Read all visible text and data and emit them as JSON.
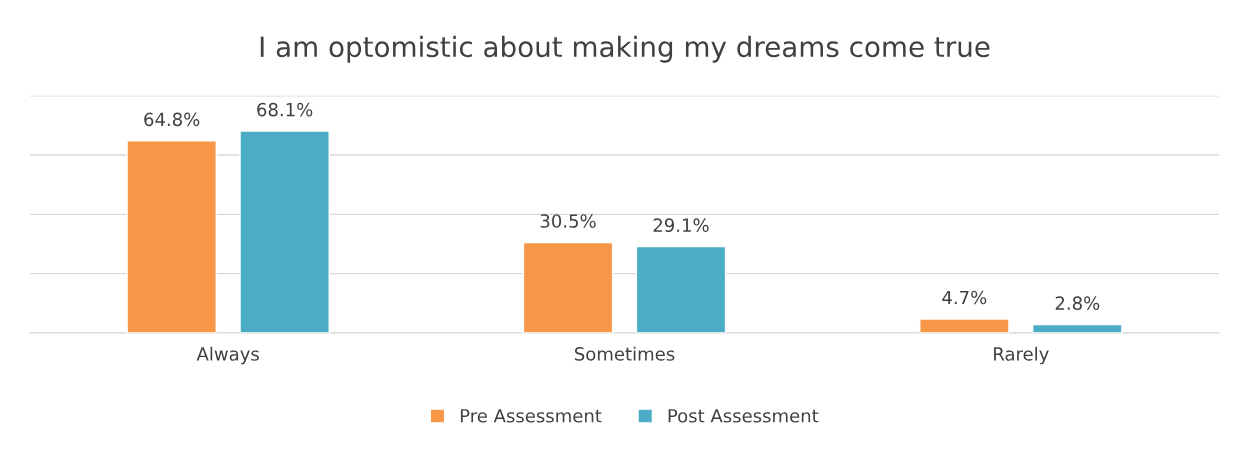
{
  "chart_data": {
    "type": "bar",
    "title": "I am optomistic about making my dreams come true",
    "categories": [
      "Always",
      "Sometimes",
      "Rarely"
    ],
    "series": [
      {
        "name": "Pre Assessment",
        "color": "#f79646",
        "values": [
          64.8,
          30.5,
          4.7
        ],
        "value_labels": [
          "64.8%",
          "30.5%",
          "4.7%"
        ]
      },
      {
        "name": "Post Assessment",
        "color": "#4bacc6",
        "values": [
          68.1,
          29.1,
          2.8
        ],
        "value_labels": [
          "68.1%",
          "29.1%",
          "2.8%"
        ]
      }
    ],
    "ylim": [
      0,
      80
    ],
    "yticks": [
      {
        "value": 0,
        "label": null
      },
      {
        "value": 20,
        "label": null
      },
      {
        "value": 40,
        "label": null
      },
      {
        "value": 60,
        "label": null
      },
      {
        "value": 80,
        "label": null
      }
    ],
    "tick_labels": "x",
    "grid": "y",
    "legend": "bottom"
  }
}
